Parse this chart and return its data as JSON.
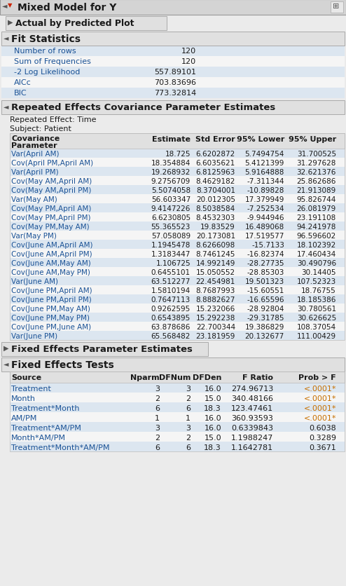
{
  "title": "Mixed Model for Y",
  "bg_color": "#ebebeb",
  "white": "#ffffff",
  "header_bg": "#d4d4d4",
  "subheader_bg": "#e0e0e0",
  "table_header_bg": "#e0e0e0",
  "row_alt_bg": "#dce6f0",
  "row_white_bg": "#f5f5f5",
  "inner_bg": "#f0f0f0",
  "blue_text": "#1a5296",
  "orange_text": "#c87000",
  "black_text": "#1a1a1a",
  "fit_stats": {
    "rows": [
      [
        "Number of rows",
        "120"
      ],
      [
        "Sum of Frequencies",
        "120"
      ],
      [
        "-2 Log Likelihood",
        "557.89101"
      ],
      [
        "AICc",
        "703.83696"
      ],
      [
        "BIC",
        "773.32814"
      ]
    ]
  },
  "cov_table": {
    "rows": [
      [
        "Var(April AM)",
        "18.725",
        "6.6202872",
        "5.7494754",
        "31.700525"
      ],
      [
        "Cov(April PM,April AM)",
        "18.354884",
        "6.6035621",
        "5.4121399",
        "31.297628"
      ],
      [
        "Var(April PM)",
        "19.268932",
        "6.8125963",
        "5.9164888",
        "32.621376"
      ],
      [
        "Cov(May AM,April AM)",
        "9.2756709",
        "8.4629182",
        "-7.311344",
        "25.862686"
      ],
      [
        "Cov(May AM,April PM)",
        "5.5074058",
        "8.3704001",
        "-10.89828",
        "21.913089"
      ],
      [
        "Var(May AM)",
        "56.603347",
        "20.012305",
        "17.379949",
        "95.826744"
      ],
      [
        "Cov(May PM,April AM)",
        "9.4147226",
        "8.5038584",
        "-7.252534",
        "26.081979"
      ],
      [
        "Cov(May PM,April PM)",
        "6.6230805",
        "8.4532303",
        "-9.944946",
        "23.191108"
      ],
      [
        "Cov(May PM,May AM)",
        "55.365523",
        "19.83529",
        "16.489068",
        "94.241978"
      ],
      [
        "Var(May PM)",
        "57.058089",
        "20.173081",
        "17.519577",
        "96.596602"
      ],
      [
        "Cov(June AM,April AM)",
        "1.1945478",
        "8.6266098",
        "-15.7133",
        "18.102392"
      ],
      [
        "Cov(June AM,April PM)",
        "1.3183447",
        "8.7461245",
        "-16.82374",
        "17.460434"
      ],
      [
        "Cov(June AM,May AM)",
        "1.106725",
        "14.992149",
        "-28.27735",
        "30.490796"
      ],
      [
        "Cov(June AM,May PM)",
        "0.6455101",
        "15.050552",
        "-28.85303",
        "30.14405"
      ],
      [
        "Var(June AM)",
        "63.512277",
        "22.454981",
        "19.501323",
        "107.52323"
      ],
      [
        "Cov(June PM,April AM)",
        "1.5810194",
        "8.7687993",
        "-15.60551",
        "18.76755"
      ],
      [
        "Cov(June PM,April PM)",
        "0.7647113",
        "8.8882627",
        "-16.65596",
        "18.185386"
      ],
      [
        "Cov(June PM,May AM)",
        "0.9262595",
        "15.232066",
        "-28.92804",
        "30.780561"
      ],
      [
        "Cov(June PM,May PM)",
        "0.6543895",
        "15.292238",
        "-29.31785",
        "30.626625"
      ],
      [
        "Cov(June PM,June AM)",
        "63.878686",
        "22.700344",
        "19.386829",
        "108.37054"
      ],
      [
        "Var(June PM)",
        "65.568482",
        "23.181959",
        "20.132677",
        "111.00429"
      ]
    ]
  },
  "fixed_effects_tests": {
    "rows": [
      [
        "Treatment",
        "3",
        "3",
        "16.0",
        "274.96713",
        "<.0001*"
      ],
      [
        "Month",
        "2",
        "2",
        "15.0",
        "340.48166",
        "<.0001*"
      ],
      [
        "Treatment*Month",
        "6",
        "6",
        "18.3",
        "123.47461",
        "<.0001*"
      ],
      [
        "AM/PM",
        "1",
        "1",
        "16.0",
        "360.93593",
        "<.0001*"
      ],
      [
        "Treatment*AM/PM",
        "3",
        "3",
        "16.0",
        "0.6339843",
        "0.6038"
      ],
      [
        "Month*AM/PM",
        "2",
        "2",
        "15.0",
        "1.1988247",
        "0.3289"
      ],
      [
        "Treatment*Month*AM/PM",
        "6",
        "6",
        "18.3",
        "1.1642781",
        "0.3671"
      ]
    ]
  }
}
